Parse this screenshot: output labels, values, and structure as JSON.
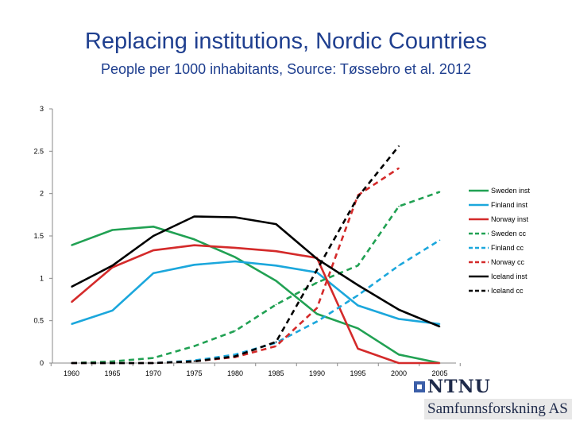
{
  "page": {
    "title": "Replacing institutions, Nordic Countries",
    "subtitle": "People per 1000 inhabitants, Source: Tøssebro et al. 2012"
  },
  "logo": {
    "ntnu": "NTNU",
    "samfunnsforskning": "Samfunnsforskning AS"
  },
  "chart_data": {
    "type": "line",
    "title": "Replacing institutions, Nordic Countries",
    "subtitle": "People per 1000 inhabitants, Source: Tøssebro et al. 2012",
    "xlabel": "",
    "ylabel": "",
    "x": [
      1960,
      1965,
      1970,
      1975,
      1980,
      1985,
      1990,
      1995,
      2000,
      2005
    ],
    "ylim": [
      0,
      3
    ],
    "yticks": [
      0,
      0.5,
      1,
      1.5,
      2,
      2.5,
      3
    ],
    "ytick_labels": [
      "0",
      "0.5",
      "1",
      "1.5",
      "2",
      "2.5",
      "3"
    ],
    "grid": false,
    "legend_position": "right",
    "series": [
      {
        "name": "Sweden inst",
        "color": "#21a153",
        "dash": false,
        "x": [
          1960,
          1965,
          1970,
          1975,
          1980,
          1985,
          1990,
          1995,
          2000,
          2005
        ],
        "values": [
          1.39,
          1.57,
          1.61,
          1.46,
          1.25,
          0.97,
          0.58,
          0.41,
          0.1,
          0.0
        ]
      },
      {
        "name": "Finland inst",
        "color": "#1ba7dc",
        "dash": false,
        "x": [
          1960,
          1965,
          1970,
          1975,
          1980,
          1985,
          1990,
          1995,
          2000,
          2005
        ],
        "values": [
          0.46,
          0.62,
          1.06,
          1.16,
          1.2,
          1.15,
          1.07,
          0.68,
          0.52,
          0.46
        ]
      },
      {
        "name": "Norway inst",
        "color": "#d42a2a",
        "dash": false,
        "x": [
          1960,
          1965,
          1970,
          1975,
          1980,
          1985,
          1990,
          1995,
          2000,
          2005
        ],
        "values": [
          0.72,
          1.13,
          1.33,
          1.39,
          1.36,
          1.32,
          1.24,
          0.17,
          0.0,
          0.0
        ]
      },
      {
        "name": "Sweden  cc",
        "color": "#21a153",
        "dash": true,
        "x": [
          1960,
          1965,
          1970,
          1975,
          1980,
          1985,
          1990,
          1995,
          2000,
          2005
        ],
        "values": [
          0.0,
          0.02,
          0.06,
          0.2,
          0.38,
          0.69,
          0.95,
          1.15,
          1.85,
          2.02
        ]
      },
      {
        "name": "Finland cc",
        "color": "#1ba7dc",
        "dash": true,
        "x": [
          1960,
          1965,
          1970,
          1975,
          1980,
          1985,
          1990,
          1995,
          2000,
          2005
        ],
        "values": [
          0.0,
          0.0,
          0.0,
          0.03,
          0.1,
          0.24,
          0.49,
          0.8,
          1.15,
          1.45
        ]
      },
      {
        "name": "Norway cc",
        "color": "#d42a2a",
        "dash": true,
        "x": [
          1960,
          1965,
          1970,
          1975,
          1980,
          1985,
          1990,
          1995,
          2000
        ],
        "values": [
          0.0,
          0.0,
          0.0,
          0.02,
          0.07,
          0.2,
          0.65,
          1.98,
          2.3
        ]
      },
      {
        "name": "Iceland  inst",
        "color": "#000000",
        "dash": false,
        "x": [
          1960,
          1965,
          1970,
          1975,
          1980,
          1985,
          1990,
          1995,
          2000,
          2005
        ],
        "values": [
          0.9,
          1.15,
          1.5,
          1.73,
          1.72,
          1.64,
          1.23,
          0.92,
          0.63,
          0.43
        ]
      },
      {
        "name": "Iceland  cc",
        "color": "#000000",
        "dash": true,
        "x": [
          1960,
          1965,
          1970,
          1975,
          1980,
          1985,
          1990,
          1995,
          2000
        ],
        "values": [
          0.0,
          0.0,
          0.0,
          0.02,
          0.08,
          0.25,
          1.1,
          1.96,
          2.56
        ]
      }
    ]
  }
}
